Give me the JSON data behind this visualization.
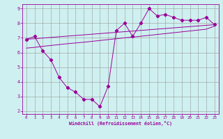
{
  "xlabel": "Windchill (Refroidissement éolien,°C)",
  "bg_color": "#cff0f0",
  "line_color": "#990099",
  "xlim": [
    -0.5,
    23.5
  ],
  "ylim": [
    1.8,
    9.3
  ],
  "xticks": [
    0,
    1,
    2,
    3,
    4,
    5,
    6,
    7,
    8,
    9,
    10,
    11,
    12,
    13,
    14,
    15,
    16,
    17,
    18,
    19,
    20,
    21,
    22,
    23
  ],
  "yticks": [
    2,
    3,
    4,
    5,
    6,
    7,
    8,
    9
  ],
  "grid_color": "#999999",
  "series1_x": [
    0,
    1,
    2,
    3,
    4,
    5,
    6,
    7,
    8,
    9,
    10,
    11,
    12,
    13,
    14,
    15,
    16,
    17,
    18,
    19,
    20,
    21,
    22,
    23
  ],
  "series1_y": [
    6.9,
    7.1,
    6.1,
    5.5,
    4.3,
    3.6,
    3.3,
    2.8,
    2.8,
    2.3,
    3.7,
    7.5,
    8.0,
    7.1,
    8.0,
    9.0,
    8.5,
    8.6,
    8.4,
    8.2,
    8.2,
    8.2,
    8.4,
    7.9
  ],
  "series2_x": [
    0,
    1,
    2,
    3,
    4,
    5,
    6,
    7,
    8,
    9,
    10,
    11,
    12,
    13,
    14,
    15,
    16,
    17,
    18,
    19,
    20,
    21,
    22,
    23
  ],
  "series2_y": [
    6.3,
    6.35,
    6.42,
    6.48,
    6.54,
    6.6,
    6.65,
    6.7,
    6.76,
    6.82,
    6.88,
    6.94,
    7.0,
    7.05,
    7.11,
    7.17,
    7.23,
    7.29,
    7.35,
    7.41,
    7.47,
    7.53,
    7.59,
    7.8
  ],
  "series3_x": [
    0,
    23
  ],
  "series3_y": [
    6.9,
    7.9
  ]
}
